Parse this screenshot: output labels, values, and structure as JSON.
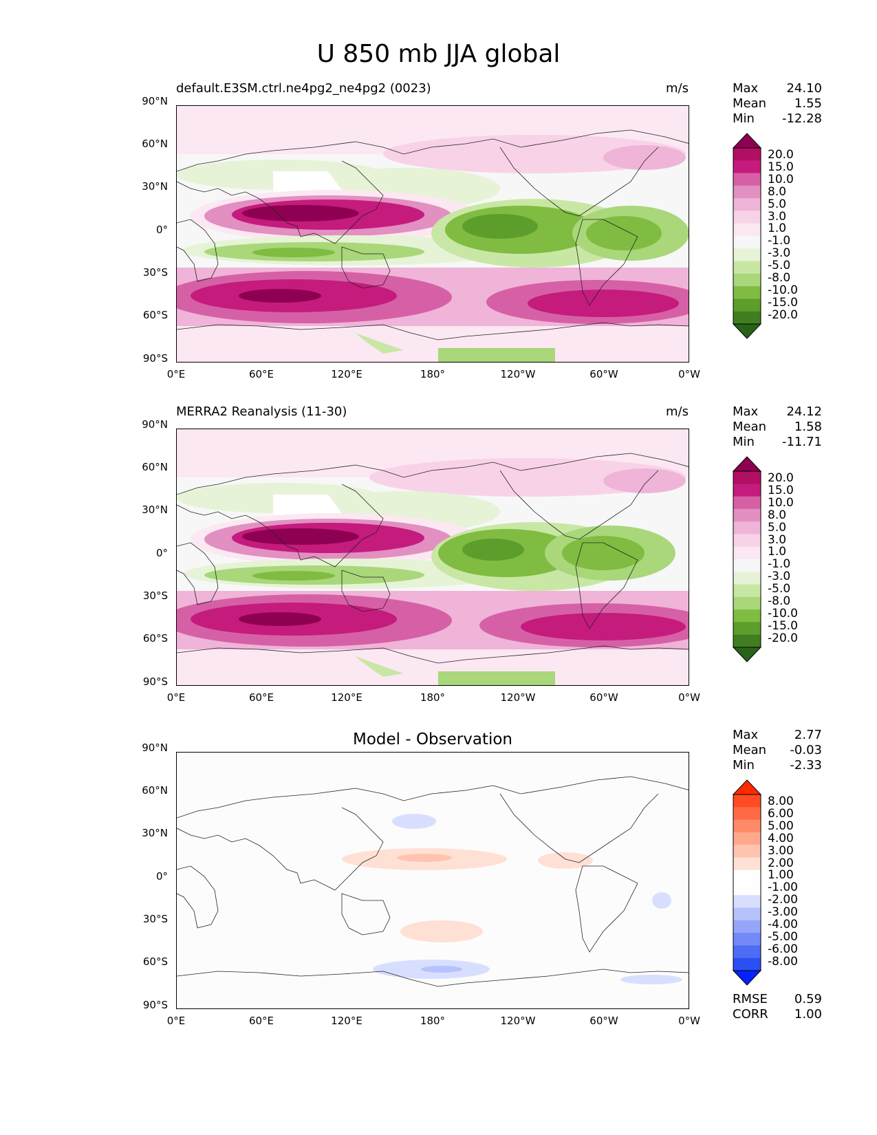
{
  "figure": {
    "title": "U 850 mb JJA global"
  },
  "axes": {
    "y_ticks": [
      "90°N",
      "60°N",
      "30°N",
      "0°",
      "30°S",
      "60°S",
      "90°S"
    ],
    "x_ticks": [
      "0°E",
      "60°E",
      "120°E",
      "180°",
      "120°W",
      "60°W",
      "0°W"
    ]
  },
  "panels": [
    {
      "id": "model",
      "title_left": "default.E3SM.ctrl.ne4pg2_ne4pg2 (0023)",
      "title_right": "m/s",
      "title_center": "",
      "stats": [
        {
          "name": "Max",
          "value": "24.10"
        },
        {
          "name": "Mean",
          "value": "1.55"
        },
        {
          "name": "Min",
          "value": "-12.28"
        }
      ],
      "colorbar": {
        "labels": [
          "20.0",
          "15.0",
          "10.0",
          "8.0",
          "5.0",
          "3.0",
          "1.0",
          "-1.0",
          "-3.0",
          "-5.0",
          "-8.0",
          "-10.0",
          "-15.0",
          "-20.0"
        ],
        "colors": [
          "#8e0152",
          "#b00f63",
          "#c51b7d",
          "#d660a6",
          "#e28fc1",
          "#efb4d8",
          "#f8d3e8",
          "#fbe8f2",
          "#f7f7f7",
          "#e6f3d6",
          "#c9e7a4",
          "#a9d77a",
          "#7fbc41",
          "#5c9d2c",
          "#3f7f21",
          "#276419"
        ]
      },
      "extra_stats": []
    },
    {
      "id": "obs",
      "title_left": "MERRA2 Reanalysis (11-30)",
      "title_right": "m/s",
      "title_center": "",
      "stats": [
        {
          "name": "Max",
          "value": "24.12"
        },
        {
          "name": "Mean",
          "value": "1.58"
        },
        {
          "name": "Min",
          "value": "-11.71"
        }
      ],
      "colorbar": {
        "labels": [
          "20.0",
          "15.0",
          "10.0",
          "8.0",
          "5.0",
          "3.0",
          "1.0",
          "-1.0",
          "-3.0",
          "-5.0",
          "-8.0",
          "-10.0",
          "-15.0",
          "-20.0"
        ],
        "colors": [
          "#8e0152",
          "#b00f63",
          "#c51b7d",
          "#d660a6",
          "#e28fc1",
          "#efb4d8",
          "#f8d3e8",
          "#fbe8f2",
          "#f7f7f7",
          "#e6f3d6",
          "#c9e7a4",
          "#a9d77a",
          "#7fbc41",
          "#5c9d2c",
          "#3f7f21",
          "#276419"
        ]
      },
      "extra_stats": []
    },
    {
      "id": "diff",
      "title_left": "",
      "title_right": "",
      "title_center": "Model - Observation",
      "stats": [
        {
          "name": "Max",
          "value": "2.77"
        },
        {
          "name": "Mean",
          "value": "-0.03"
        },
        {
          "name": "Min",
          "value": "-2.33"
        }
      ],
      "colorbar": {
        "labels": [
          "8.00",
          "6.00",
          "5.00",
          "4.00",
          "3.00",
          "2.00",
          "1.00",
          "-1.00",
          "-2.00",
          "-3.00",
          "-4.00",
          "-5.00",
          "-6.00",
          "-8.00"
        ],
        "colors": [
          "#ff2a00",
          "#ff4a22",
          "#ff6a45",
          "#ff8a68",
          "#ffa88c",
          "#ffc4b0",
          "#ffe0d4",
          "#fefefe",
          "#fefefe",
          "#d8dffe",
          "#b6c2fc",
          "#95a6fa",
          "#7289f7",
          "#4f6cf5",
          "#2b4ff2",
          "#0422ff"
        ]
      },
      "extra_stats": [
        {
          "name": "RMSE",
          "value": "0.59"
        },
        {
          "name": "CORR",
          "value": "1.00"
        }
      ]
    }
  ]
}
